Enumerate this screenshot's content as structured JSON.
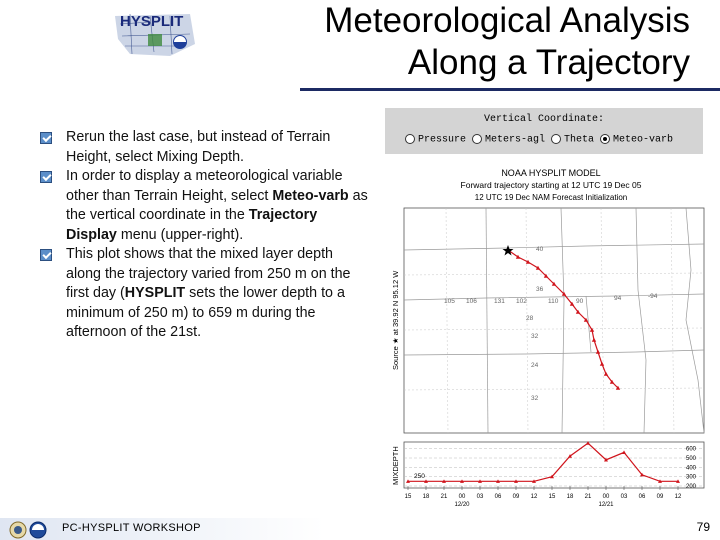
{
  "title_line1": "Meteorological Analysis",
  "title_line2": "Along a Trajectory",
  "logo_text": "HYSPLIT",
  "bullets": [
    {
      "parts": [
        {
          "t": "Rerun the last case, but instead of Terrain Height, select Mixing Depth.",
          "b": false
        }
      ]
    },
    {
      "parts": [
        {
          "t": "In order to display a meteorological variable other than Terrain Height, select ",
          "b": false
        },
        {
          "t": "Meteo-varb",
          "b": true
        },
        {
          "t": " as the vertical coordinate in the ",
          "b": false
        },
        {
          "t": "Trajectory Display",
          "b": true
        },
        {
          "t": " menu (upper-right).",
          "b": false
        }
      ]
    },
    {
      "parts": [
        {
          "t": "This plot shows that the mixed layer depth along the trajectory varied from 250 m on the first day (",
          "b": false
        },
        {
          "t": "HYSPLIT",
          "b": true
        },
        {
          "t": " sets the lower depth to a minimum of 250 m) to 659 m during the afternoon of the 21st.",
          "b": false
        }
      ]
    }
  ],
  "vertical_coordinate": {
    "title": "Vertical Coordinate:",
    "options": [
      {
        "label": "Pressure",
        "selected": false
      },
      {
        "label": "Meters-agl",
        "selected": false
      },
      {
        "label": "Theta",
        "selected": false
      },
      {
        "label": "Meteo-varb",
        "selected": true
      }
    ]
  },
  "plot": {
    "title1": "NOAA HYSPLIT MODEL",
    "title2": "Forward trajectory starting at 12 UTC 19 Dec 05",
    "title3": "12 UTC 19 Dec    NAM  Forecast Initialization",
    "source_label": "Source ★ at   39.92 N    95.12 W",
    "map_numbers": [
      "40",
      "36",
      "32",
      "28",
      "24",
      "32",
      "105",
      "106",
      "131",
      "102",
      "110",
      "90",
      "94",
      "-94"
    ],
    "mix_label": "MIXDEPTH",
    "mix_start": "250",
    "right_ticks": [
      "600",
      "500",
      "400",
      "300",
      "200"
    ],
    "time_ticks": [
      "15",
      "18",
      "21",
      "00",
      "03",
      "06",
      "09",
      "12",
      "15",
      "18",
      "21",
      "00",
      "03",
      "06",
      "09",
      "12"
    ],
    "date_ticks": [
      "12/20",
      "12/21"
    ]
  },
  "chart_data": {
    "type": "line",
    "title": "NOAA HYSPLIT MODEL",
    "ylabel": "MIXDEPTH",
    "ylim": [
      200,
      650
    ],
    "x": [
      "15",
      "18",
      "21",
      "00",
      "03",
      "06",
      "09",
      "12",
      "15",
      "18",
      "21",
      "00",
      "03",
      "06",
      "09",
      "12"
    ],
    "series": [
      {
        "name": "MIXDEPTH",
        "values": [
          250,
          250,
          250,
          250,
          250,
          250,
          250,
          250,
          300,
          520,
          659,
          480,
          560,
          320,
          250,
          250
        ]
      }
    ]
  },
  "footer_text": "PC-HYSPLIT WORKSHOP",
  "page_number": "79",
  "colors": {
    "trajectory": "#d0141c",
    "rule": "#1c2a63",
    "bullet": "#5b8ec9"
  }
}
